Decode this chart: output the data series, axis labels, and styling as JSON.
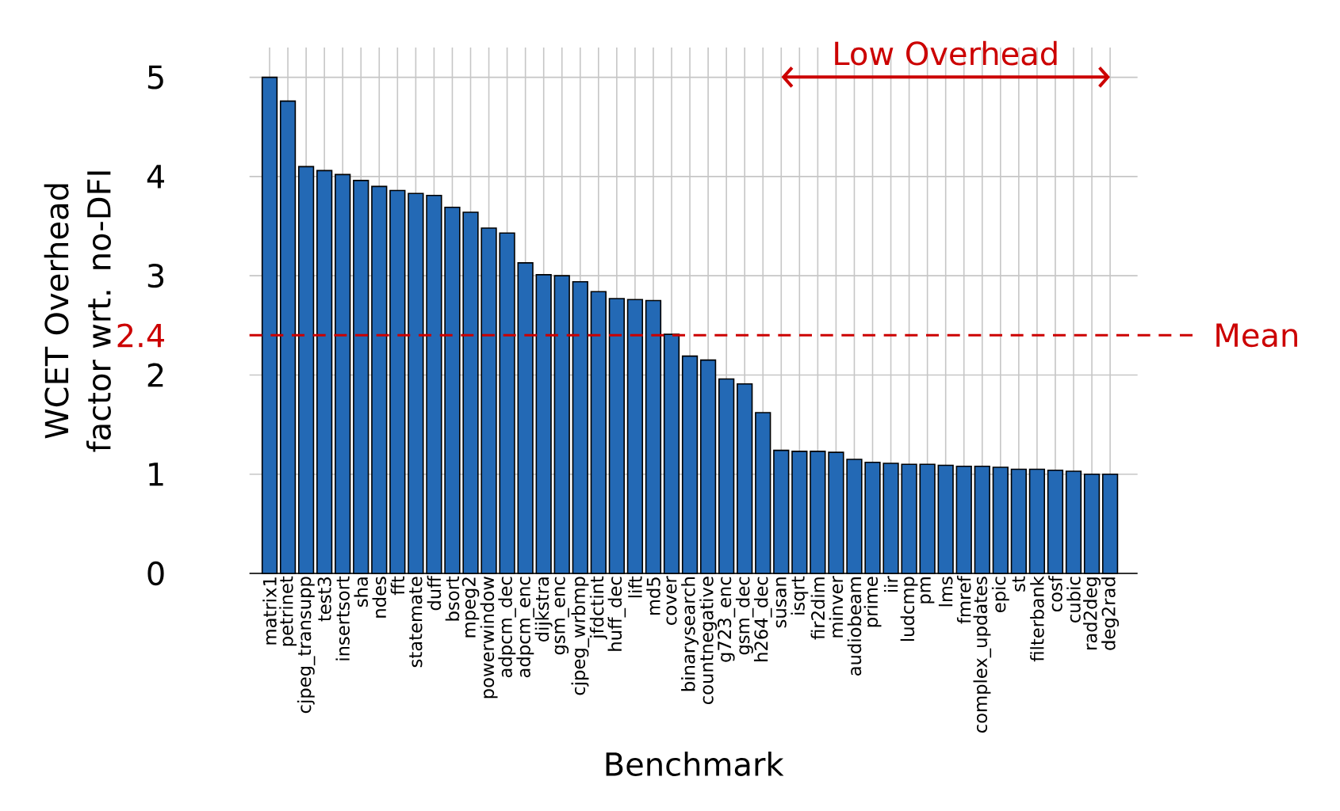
{
  "chart_data": {
    "type": "bar",
    "xlabel": "Benchmark",
    "ylabel": "WCET Overhead factor wrt. no-DFI",
    "categories": [
      "matrix1",
      "petrinet",
      "cjpeg_transupp",
      "test3",
      "insertsort",
      "sha",
      "ndes",
      "fft",
      "statemate",
      "duff",
      "bsort",
      "mpeg2",
      "powerwindow",
      "adpcm_dec",
      "adpcm_enc",
      "dijkstra",
      "gsm_enc",
      "cjpeg_wrbmp",
      "jfdctint",
      "huff_dec",
      "lift",
      "md5",
      "cover",
      "binarysearch",
      "countnegative",
      "g723_enc",
      "gsm_dec",
      "h264_dec",
      "susan",
      "isqrt",
      "fir2dim",
      "minver",
      "audiobeam",
      "prime",
      "iir",
      "ludcmp",
      "pm",
      "lms",
      "fmref",
      "complex_updates",
      "epic",
      "st",
      "filterbank",
      "cosf",
      "cubic",
      "rad2deg",
      "deg2rad"
    ],
    "values": [
      5.0,
      4.76,
      4.1,
      4.06,
      4.02,
      3.96,
      3.9,
      3.86,
      3.83,
      3.81,
      3.69,
      3.64,
      3.48,
      3.43,
      3.13,
      3.01,
      3.0,
      2.94,
      2.84,
      2.77,
      2.76,
      2.75,
      2.41,
      2.19,
      2.15,
      1.96,
      1.91,
      1.62,
      1.24,
      1.23,
      1.23,
      1.22,
      1.15,
      1.12,
      1.11,
      1.1,
      1.1,
      1.09,
      1.08,
      1.08,
      1.07,
      1.05,
      1.05,
      1.04,
      1.03,
      1.0,
      1.0
    ],
    "color": "#2369b5",
    "ylim": [
      0,
      5.3
    ],
    "yticks": [
      0,
      1,
      2,
      {
        "value": 2.4,
        "label": "2.4"
      },
      3,
      4,
      5
    ],
    "grid": true,
    "ref_lines": [
      {
        "axis": "y",
        "value": 2.4,
        "label": "Mean",
        "color": "#cc0000",
        "line_style": "dashed"
      }
    ],
    "annotations": [
      "Low Overhead"
    ]
  }
}
